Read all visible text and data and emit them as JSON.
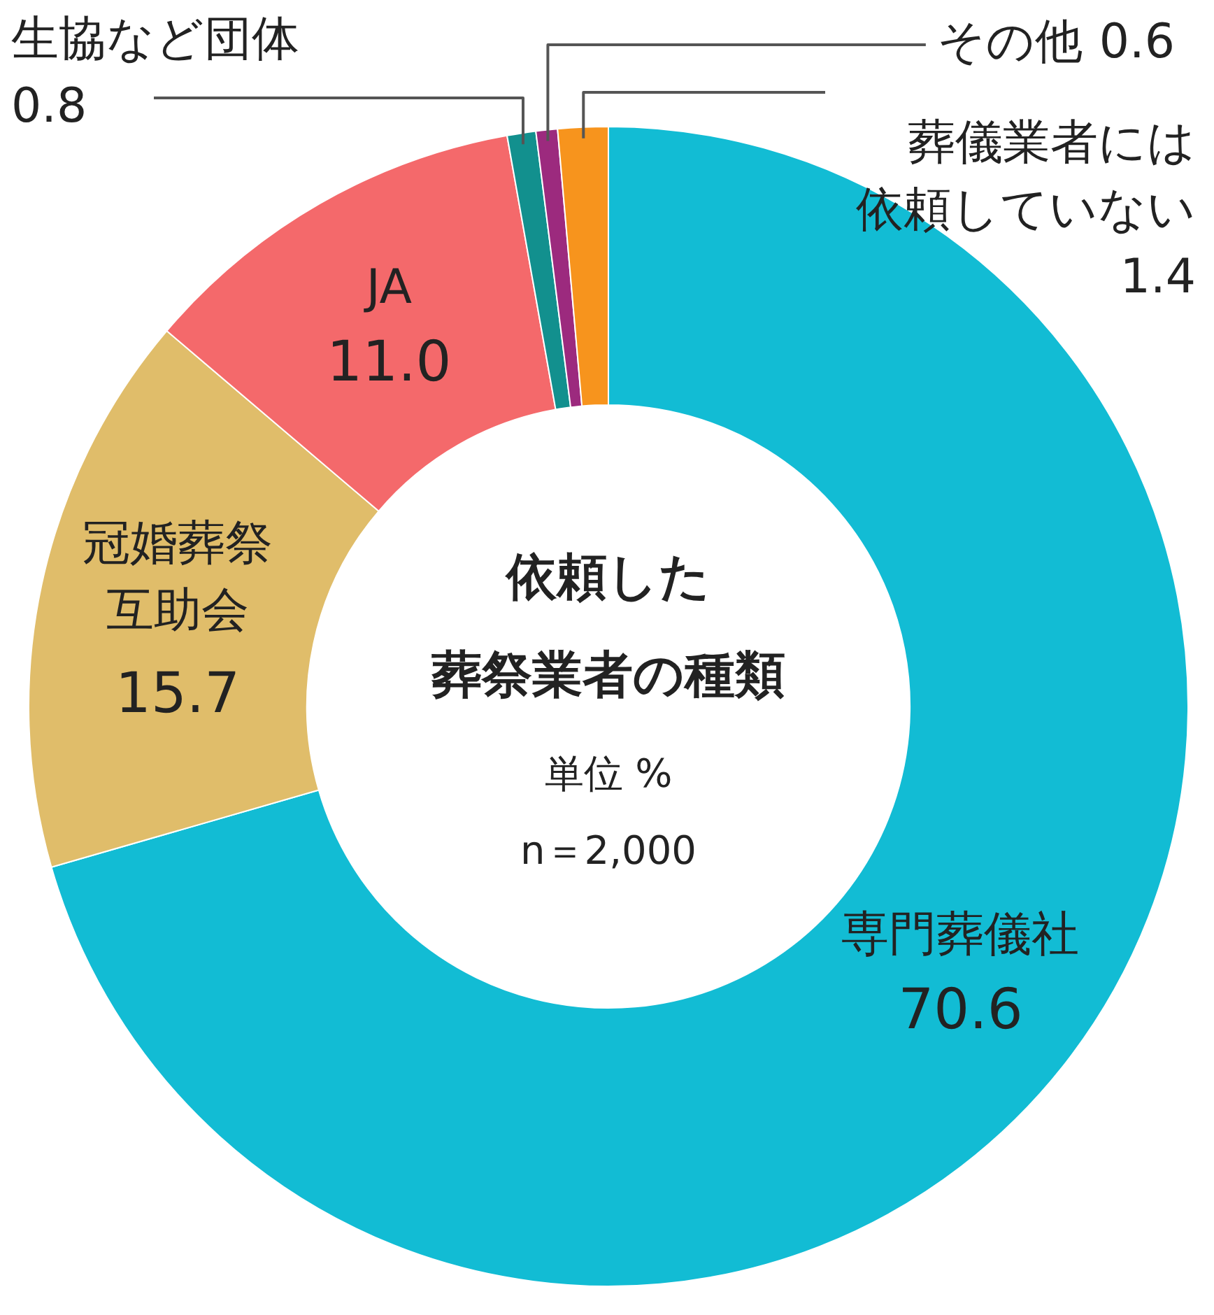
{
  "chart_data": {
    "type": "donut",
    "title": "依頼した葬祭業者の種類",
    "categories": [
      "専門葬儀社",
      "冠婚葬祭互助会",
      "JA",
      "生協など団体",
      "その他",
      "葬儀業者には依頼していない"
    ],
    "values": [
      70.6,
      15.7,
      11.0,
      0.8,
      0.6,
      1.4
    ],
    "value_labels": [
      "70.6",
      "15.7",
      "11.0",
      "0.8",
      "0.6",
      "1.4"
    ],
    "colors": [
      "#12bcd4",
      "#e0bd6a",
      "#f4696b",
      "#12908e",
      "#9c2a7e",
      "#f7941d"
    ],
    "annotations": [
      "単位 %",
      "n＝2,000"
    ],
    "legend": false
  }
}
